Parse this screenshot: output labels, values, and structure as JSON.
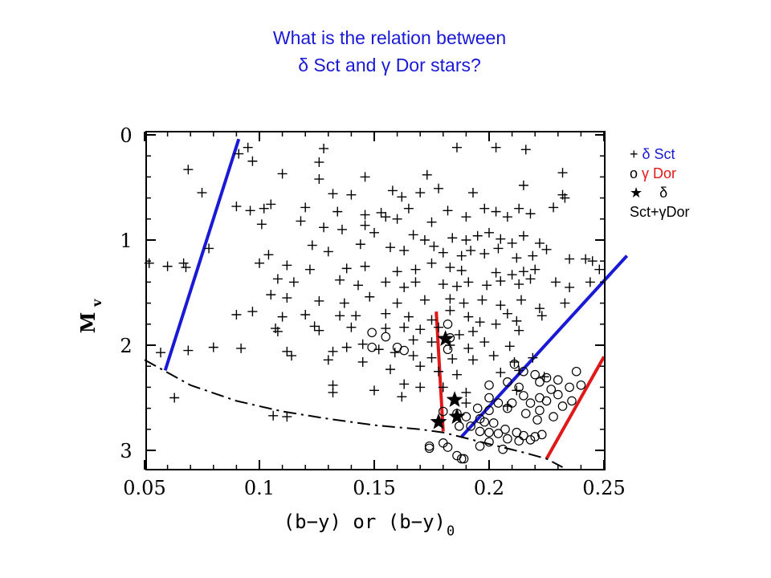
{
  "title": {
    "line1": "What is the relation between",
    "line2": "δ Sct and γ Dor stars?"
  },
  "legend": {
    "delta_marker": "+",
    "delta_label": "δ Sct",
    "gamma_marker": "o",
    "gamma_label": "γ Dor",
    "hybrid_marker": "★",
    "hybrid_label_1": "δ",
    "hybrid_label_2": "Sct+γDor"
  },
  "chart_data": {
    "type": "scatter",
    "xlabel": "(b−y) or (b−y)",
    "xlabel_sub": "0",
    "ylabel": "M",
    "ylabel_sub": "v",
    "xlim": [
      0.05,
      0.26
    ],
    "ylim": [
      3.2,
      -0.05
    ],
    "y_inverted": true,
    "xticks": [
      0.05,
      0.1,
      0.15,
      0.2,
      0.25
    ],
    "xtick_labels": [
      "0.05",
      "0.1",
      "0.15",
      "0.2",
      "0.25"
    ],
    "yticks": [
      0,
      1,
      2,
      3
    ],
    "ytick_labels": [
      "0",
      "1",
      "2",
      "3"
    ],
    "grid": false,
    "colors": {
      "blue": "#1a1ad6",
      "red": "#e01818",
      "black": "#000000"
    },
    "series": [
      {
        "name": "δ Sct",
        "marker": "plus",
        "points": [
          [
            0.091,
            0.18
          ],
          [
            0.095,
            0.12
          ],
          [
            0.097,
            0.25
          ],
          [
            0.128,
            0.13
          ],
          [
            0.126,
            0.26
          ],
          [
            0.186,
            0.12
          ],
          [
            0.203,
            0.12
          ],
          [
            0.216,
            0.14
          ],
          [
            0.069,
            0.33
          ],
          [
            0.11,
            0.37
          ],
          [
            0.126,
            0.42
          ],
          [
            0.146,
            0.4
          ],
          [
            0.173,
            0.38
          ],
          [
            0.232,
            0.36
          ],
          [
            0.132,
            0.56
          ],
          [
            0.14,
            0.57
          ],
          [
            0.158,
            0.53
          ],
          [
            0.162,
            0.59
          ],
          [
            0.17,
            0.55
          ],
          [
            0.178,
            0.51
          ],
          [
            0.193,
            0.55
          ],
          [
            0.215,
            0.48
          ],
          [
            0.232,
            0.57
          ],
          [
            0.233,
            0.6
          ],
          [
            0.075,
            0.55
          ],
          [
            0.09,
            0.68
          ],
          [
            0.096,
            0.72
          ],
          [
            0.102,
            0.7
          ],
          [
            0.105,
            0.66
          ],
          [
            0.12,
            0.69
          ],
          [
            0.134,
            0.73
          ],
          [
            0.146,
            0.76
          ],
          [
            0.153,
            0.74
          ],
          [
            0.155,
            0.78
          ],
          [
            0.16,
            0.8
          ],
          [
            0.165,
            0.7
          ],
          [
            0.175,
            0.83
          ],
          [
            0.182,
            0.72
          ],
          [
            0.19,
            0.78
          ],
          [
            0.198,
            0.7
          ],
          [
            0.203,
            0.73
          ],
          [
            0.208,
            0.78
          ],
          [
            0.213,
            0.7
          ],
          [
            0.218,
            0.75
          ],
          [
            0.228,
            0.69
          ],
          [
            0.101,
            0.85
          ],
          [
            0.118,
            0.82
          ],
          [
            0.128,
            0.88
          ],
          [
            0.136,
            0.9
          ],
          [
            0.146,
            0.86
          ],
          [
            0.15,
            0.93
          ],
          [
            0.167,
            0.95
          ],
          [
            0.172,
            1.0
          ],
          [
            0.176,
            1.06
          ],
          [
            0.184,
            0.98
          ],
          [
            0.19,
            1.0
          ],
          [
            0.195,
            0.96
          ],
          [
            0.2,
            0.93
          ],
          [
            0.205,
            0.99
          ],
          [
            0.21,
            1.03
          ],
          [
            0.215,
            0.96
          ],
          [
            0.222,
            1.03
          ],
          [
            0.078,
            1.08
          ],
          [
            0.104,
            1.14
          ],
          [
            0.123,
            1.05
          ],
          [
            0.13,
            1.11
          ],
          [
            0.144,
            1.04
          ],
          [
            0.157,
            1.07
          ],
          [
            0.163,
            1.1
          ],
          [
            0.18,
            1.12
          ],
          [
            0.188,
            1.15
          ],
          [
            0.192,
            1.1
          ],
          [
            0.198,
            1.13
          ],
          [
            0.204,
            1.08
          ],
          [
            0.212,
            1.17
          ],
          [
            0.219,
            1.15
          ],
          [
            0.225,
            1.09
          ],
          [
            0.235,
            1.18
          ],
          [
            0.242,
            1.18
          ],
          [
            0.245,
            1.2
          ],
          [
            0.052,
            1.22
          ],
          [
            0.06,
            1.25
          ],
          [
            0.067,
            1.22
          ],
          [
            0.068,
            1.26
          ],
          [
            0.1,
            1.22
          ],
          [
            0.112,
            1.24
          ],
          [
            0.122,
            1.28
          ],
          [
            0.138,
            1.27
          ],
          [
            0.146,
            1.25
          ],
          [
            0.16,
            1.3
          ],
          [
            0.168,
            1.28
          ],
          [
            0.175,
            1.22
          ],
          [
            0.183,
            1.26
          ],
          [
            0.188,
            1.29
          ],
          [
            0.203,
            1.31
          ],
          [
            0.21,
            1.33
          ],
          [
            0.215,
            1.3
          ],
          [
            0.22,
            1.28
          ],
          [
            0.248,
            1.28
          ],
          [
            0.108,
            1.37
          ],
          [
            0.115,
            1.4
          ],
          [
            0.135,
            1.38
          ],
          [
            0.143,
            1.43
          ],
          [
            0.155,
            1.4
          ],
          [
            0.163,
            1.45
          ],
          [
            0.168,
            1.4
          ],
          [
            0.18,
            1.42
          ],
          [
            0.186,
            1.44
          ],
          [
            0.191,
            1.4
          ],
          [
            0.199,
            1.43
          ],
          [
            0.205,
            1.39
          ],
          [
            0.213,
            1.42
          ],
          [
            0.218,
            1.37
          ],
          [
            0.229,
            1.4
          ],
          [
            0.235,
            1.45
          ],
          [
            0.244,
            1.4
          ],
          [
            0.105,
            1.52
          ],
          [
            0.112,
            1.55
          ],
          [
            0.126,
            1.58
          ],
          [
            0.137,
            1.6
          ],
          [
            0.148,
            1.54
          ],
          [
            0.16,
            1.6
          ],
          [
            0.172,
            1.57
          ],
          [
            0.183,
            1.56
          ],
          [
            0.189,
            1.6
          ],
          [
            0.197,
            1.57
          ],
          [
            0.205,
            1.62
          ],
          [
            0.214,
            1.57
          ],
          [
            0.222,
            1.65
          ],
          [
            0.233,
            1.6
          ],
          [
            0.09,
            1.71
          ],
          [
            0.097,
            1.68
          ],
          [
            0.11,
            1.73
          ],
          [
            0.12,
            1.71
          ],
          [
            0.135,
            1.72
          ],
          [
            0.142,
            1.72
          ],
          [
            0.155,
            1.7
          ],
          [
            0.165,
            1.73
          ],
          [
            0.175,
            1.76
          ],
          [
            0.183,
            1.67
          ],
          [
            0.191,
            1.73
          ],
          [
            0.196,
            1.78
          ],
          [
            0.208,
            1.7
          ],
          [
            0.212,
            1.77
          ],
          [
            0.223,
            1.72
          ],
          [
            0.107,
            1.84
          ],
          [
            0.124,
            1.82
          ],
          [
            0.14,
            1.83
          ],
          [
            0.155,
            1.84
          ],
          [
            0.163,
            1.83
          ],
          [
            0.17,
            1.85
          ],
          [
            0.178,
            1.83
          ],
          [
            0.187,
            1.9
          ],
          [
            0.193,
            1.87
          ],
          [
            0.203,
            1.8
          ],
          [
            0.213,
            1.86
          ],
          [
            0.108,
            1.87
          ],
          [
            0.126,
            1.86
          ],
          [
            0.167,
            1.95
          ],
          [
            0.145,
            1.99
          ],
          [
            0.175,
            1.97
          ],
          [
            0.183,
            2.0
          ],
          [
            0.191,
            2.03
          ],
          [
            0.198,
            1.97
          ],
          [
            0.209,
            2.01
          ],
          [
            0.08,
            2.02
          ],
          [
            0.069,
            2.05
          ],
          [
            0.092,
            2.03
          ],
          [
            0.112,
            2.06
          ],
          [
            0.132,
            2.06
          ],
          [
            0.138,
            2.02
          ],
          [
            0.152,
            2.04
          ],
          [
            0.159,
            2.07
          ],
          [
            0.167,
            2.1
          ],
          [
            0.175,
            2.12
          ],
          [
            0.184,
            2.13
          ],
          [
            0.193,
            2.14
          ],
          [
            0.202,
            2.1
          ],
          [
            0.211,
            2.16
          ],
          [
            0.219,
            2.12
          ],
          [
            0.057,
            2.07
          ],
          [
            0.114,
            2.1
          ],
          [
            0.13,
            2.14
          ],
          [
            0.145,
            2.16
          ],
          [
            0.157,
            2.23
          ],
          [
            0.17,
            2.2
          ],
          [
            0.178,
            2.25
          ],
          [
            0.186,
            2.28
          ],
          [
            0.205,
            2.26
          ],
          [
            0.213,
            2.24
          ],
          [
            0.224,
            2.3
          ],
          [
            0.132,
            2.38
          ],
          [
            0.15,
            2.43
          ],
          [
            0.163,
            2.37
          ],
          [
            0.17,
            2.4
          ],
          [
            0.18,
            2.4
          ],
          [
            0.19,
            2.45
          ],
          [
            0.212,
            2.43
          ],
          [
            0.132,
            2.45
          ],
          [
            0.162,
            2.49
          ],
          [
            0.19,
            2.55
          ],
          [
            0.208,
            2.58
          ],
          [
            0.063,
            2.5
          ],
          [
            0.106,
            2.67
          ],
          [
            0.112,
            2.68
          ]
        ]
      },
      {
        "name": "γ Dor",
        "marker": "circle",
        "points": [
          [
            0.149,
            1.88
          ],
          [
            0.155,
            1.92
          ],
          [
            0.149,
            2.02
          ],
          [
            0.16,
            2.02
          ],
          [
            0.163,
            2.05
          ],
          [
            0.182,
            1.8
          ],
          [
            0.183,
            1.93
          ],
          [
            0.182,
            2.04
          ],
          [
            0.211,
            2.18
          ],
          [
            0.215,
            2.25
          ],
          [
            0.22,
            2.28
          ],
          [
            0.225,
            2.31
          ],
          [
            0.23,
            2.33
          ],
          [
            0.238,
            2.25
          ],
          [
            0.222,
            2.35
          ],
          [
            0.208,
            2.35
          ],
          [
            0.2,
            2.38
          ],
          [
            0.213,
            2.4
          ],
          [
            0.227,
            2.42
          ],
          [
            0.235,
            2.4
          ],
          [
            0.24,
            2.38
          ],
          [
            0.215,
            2.48
          ],
          [
            0.222,
            2.5
          ],
          [
            0.23,
            2.47
          ],
          [
            0.2,
            2.5
          ],
          [
            0.204,
            2.55
          ],
          [
            0.21,
            2.55
          ],
          [
            0.218,
            2.55
          ],
          [
            0.225,
            2.53
          ],
          [
            0.232,
            2.58
          ],
          [
            0.236,
            2.53
          ],
          [
            0.195,
            2.6
          ],
          [
            0.2,
            2.62
          ],
          [
            0.208,
            2.6
          ],
          [
            0.216,
            2.65
          ],
          [
            0.222,
            2.62
          ],
          [
            0.228,
            2.68
          ],
          [
            0.18,
            2.63
          ],
          [
            0.186,
            2.65
          ],
          [
            0.19,
            2.68
          ],
          [
            0.196,
            2.7
          ],
          [
            0.198,
            2.73
          ],
          [
            0.202,
            2.74
          ],
          [
            0.207,
            2.8
          ],
          [
            0.212,
            2.83
          ],
          [
            0.215,
            2.86
          ],
          [
            0.22,
            2.87
          ],
          [
            0.223,
            2.85
          ],
          [
            0.187,
            2.77
          ],
          [
            0.192,
            2.77
          ],
          [
            0.196,
            2.82
          ],
          [
            0.2,
            2.83
          ],
          [
            0.204,
            2.84
          ],
          [
            0.208,
            2.89
          ],
          [
            0.213,
            2.91
          ],
          [
            0.218,
            2.9
          ],
          [
            0.196,
            2.96
          ],
          [
            0.182,
            2.97
          ],
          [
            0.186,
            3.05
          ],
          [
            0.188,
            3.08
          ],
          [
            0.189,
            3.08
          ],
          [
            0.174,
            2.96
          ],
          [
            0.18,
            2.93
          ],
          [
            0.174,
            2.98
          ],
          [
            0.2,
            2.92
          ],
          [
            0.206,
            2.99
          ],
          [
            0.221,
            2.71
          ]
        ]
      },
      {
        "name": "δ Sct+γDor",
        "marker": "star",
        "points": [
          [
            0.181,
            1.94
          ],
          [
            0.185,
            2.52
          ],
          [
            0.186,
            2.68
          ],
          [
            0.178,
            2.73
          ]
        ]
      }
    ],
    "lines": [
      {
        "name": "blue-edge-left",
        "color": "#1a1ad6",
        "points": [
          [
            0.059,
            2.24
          ],
          [
            0.091,
            0.04
          ]
        ]
      },
      {
        "name": "blue-edge-right",
        "color": "#1a1ad6",
        "points": [
          [
            0.188,
            2.87
          ],
          [
            0.26,
            1.15
          ]
        ]
      },
      {
        "name": "red-edge-left",
        "color": "#e01818",
        "points": [
          [
            0.177,
            1.68
          ],
          [
            0.18,
            2.82
          ]
        ]
      },
      {
        "name": "red-edge-right",
        "color": "#e01818",
        "points": [
          [
            0.225,
            3.08
          ],
          [
            0.25,
            2.11
          ]
        ]
      },
      {
        "name": "zams",
        "color": "#000000",
        "dash": "dashdot",
        "points": [
          [
            0.05,
            2.14
          ],
          [
            0.07,
            2.38
          ],
          [
            0.09,
            2.53
          ],
          [
            0.11,
            2.63
          ],
          [
            0.13,
            2.7
          ],
          [
            0.15,
            2.76
          ],
          [
            0.17,
            2.8
          ],
          [
            0.18,
            2.83
          ],
          [
            0.2,
            2.94
          ],
          [
            0.215,
            3.02
          ],
          [
            0.225,
            3.08
          ],
          [
            0.232,
            3.16
          ]
        ]
      }
    ]
  }
}
